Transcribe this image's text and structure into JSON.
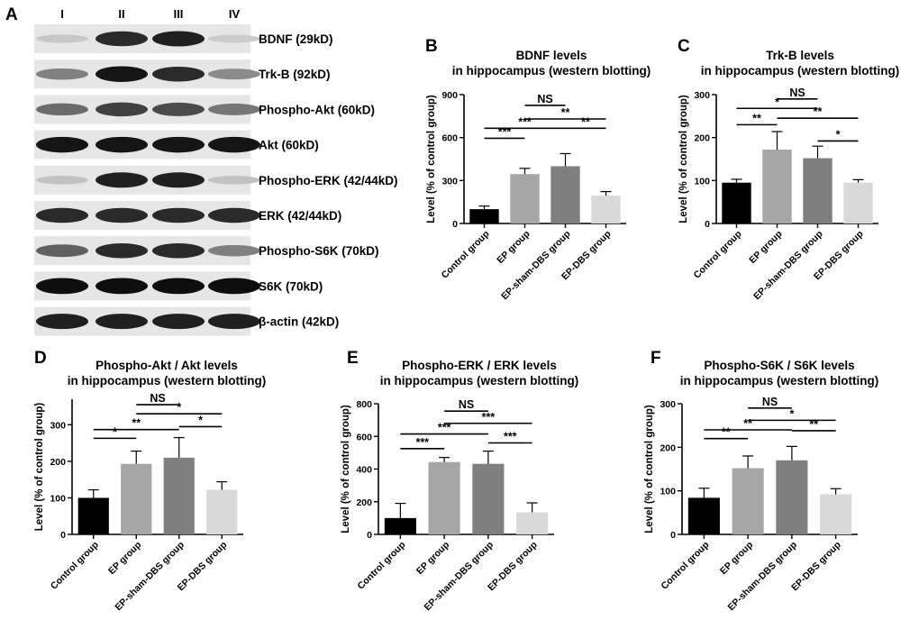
{
  "panel_a": {
    "letter": "A",
    "lanes": [
      "I",
      "II",
      "III",
      "IV"
    ],
    "bands": [
      {
        "label": "BDNF (29kD)",
        "intensity": [
          0.12,
          0.85,
          0.9,
          0.1
        ]
      },
      {
        "label": "Trk-B (92kD)",
        "intensity": [
          0.45,
          0.95,
          0.85,
          0.4
        ]
      },
      {
        "label": "Phospho-Akt (60kD)",
        "intensity": [
          0.55,
          0.75,
          0.7,
          0.5
        ]
      },
      {
        "label": "Akt (60kD)",
        "intensity": [
          0.95,
          0.95,
          0.95,
          0.95
        ]
      },
      {
        "label": "Phospho-ERK (42/44kD)",
        "intensity": [
          0.15,
          0.9,
          0.9,
          0.15
        ]
      },
      {
        "label": "ERK (42/44kD)",
        "intensity": [
          0.85,
          0.85,
          0.85,
          0.85
        ]
      },
      {
        "label": "Phospho-S6K (70kD)",
        "intensity": [
          0.6,
          0.85,
          0.85,
          0.45
        ]
      },
      {
        "label": "S6K (70kD)",
        "intensity": [
          0.98,
          0.98,
          0.98,
          0.98
        ]
      },
      {
        "label": "β-actin (42kD)",
        "intensity": [
          0.9,
          0.9,
          0.9,
          0.9
        ]
      }
    ]
  },
  "bar_colors": [
    "#000000",
    "#a6a6a6",
    "#7f7f7f",
    "#d9d9d9"
  ],
  "chart_data": [
    {
      "letter": "B",
      "type": "bar",
      "title": [
        "BDNF levels",
        "in hippocampus (western blotting)"
      ],
      "ylabel": "Level (% of control group)",
      "ylim": [
        0,
        900
      ],
      "yticks": [
        0,
        300,
        600,
        900
      ],
      "categories": [
        "Control group",
        "EP group",
        "EP-sham-DBS group",
        "EP-DBS group"
      ],
      "values": [
        100,
        345,
        400,
        195
      ],
      "errors": [
        22,
        40,
        88,
        28
      ],
      "significance": [
        {
          "from": 0,
          "to": 1,
          "y": 595,
          "text": "***"
        },
        {
          "from": 0,
          "to": 2,
          "y": 665,
          "text": "***"
        },
        {
          "from": 1,
          "to": 3,
          "y": 730,
          "text": "**"
        },
        {
          "from": 2,
          "to": 3,
          "y": 665,
          "text": "**"
        },
        {
          "from": 1,
          "to": 2,
          "y": 825,
          "text": "NS"
        }
      ]
    },
    {
      "letter": "C",
      "type": "bar",
      "title": [
        "Trk-B levels",
        "in hippocampus (western blotting)"
      ],
      "ylabel": "Level (% of control group)",
      "ylim": [
        0,
        300
      ],
      "yticks": [
        0,
        100,
        200,
        300
      ],
      "categories": [
        "Control group",
        "EP group",
        "EP-sham-DBS group",
        "EP-DBS group"
      ],
      "values": [
        95,
        172,
        152,
        95
      ],
      "errors": [
        8,
        42,
        28,
        7
      ],
      "significance": [
        {
          "from": 0,
          "to": 1,
          "y": 230,
          "text": "**"
        },
        {
          "from": 2,
          "to": 3,
          "y": 192,
          "text": "*"
        },
        {
          "from": 0,
          "to": 2,
          "y": 268,
          "text": "*"
        },
        {
          "from": 1,
          "to": 3,
          "y": 245,
          "text": "**"
        },
        {
          "from": 1,
          "to": 2,
          "y": 290,
          "text": "NS"
        }
      ]
    },
    {
      "letter": "D",
      "type": "bar",
      "title": [
        "Phospho-Akt /  Akt levels",
        "in hippocampus (western blotting)"
      ],
      "ylabel": "Level (% of control group)",
      "ylim": [
        0,
        370
      ],
      "yticks": [
        0,
        100,
        200,
        300
      ],
      "categories": [
        "Control group",
        "EP group",
        "EP-sham-DBS group",
        "EP-DBS group"
      ],
      "values": [
        100,
        193,
        210,
        122
      ],
      "errors": [
        22,
        35,
        55,
        22
      ],
      "significance": [
        {
          "from": 0,
          "to": 1,
          "y": 263,
          "text": "*"
        },
        {
          "from": 2,
          "to": 3,
          "y": 295,
          "text": "*"
        },
        {
          "from": 0,
          "to": 2,
          "y": 287,
          "text": "**"
        },
        {
          "from": 1,
          "to": 3,
          "y": 330,
          "text": "*"
        },
        {
          "from": 1,
          "to": 2,
          "y": 355,
          "text": "NS"
        }
      ]
    },
    {
      "letter": "E",
      "type": "bar",
      "title": [
        "Phospho-ERK /  ERK levels",
        "in hippocampus (western blotting)"
      ],
      "ylabel": "Level (% of control group)",
      "ylim": [
        0,
        800
      ],
      "yticks": [
        0,
        200,
        400,
        600,
        800
      ],
      "categories": [
        "Control group",
        "EP group",
        "EP-sham-DBS group",
        "EP-DBS group"
      ],
      "values": [
        100,
        443,
        432,
        135
      ],
      "errors": [
        90,
        28,
        78,
        58
      ],
      "significance": [
        {
          "from": 0,
          "to": 1,
          "y": 525,
          "text": "***"
        },
        {
          "from": 2,
          "to": 3,
          "y": 560,
          "text": "***"
        },
        {
          "from": 0,
          "to": 2,
          "y": 615,
          "text": "***"
        },
        {
          "from": 1,
          "to": 3,
          "y": 680,
          "text": "***"
        },
        {
          "from": 1,
          "to": 2,
          "y": 755,
          "text": "NS"
        }
      ]
    },
    {
      "letter": "F",
      "type": "bar",
      "title": [
        "Phospho-S6K / S6K levels",
        "in hippocampus (western blotting)"
      ],
      "ylabel": "Level (% of control group)",
      "ylim": [
        0,
        300
      ],
      "yticks": [
        0,
        100,
        200,
        300
      ],
      "categories": [
        "Control group",
        "EP group",
        "EP-sham-DBS group",
        "EP-DBS group"
      ],
      "values": [
        84,
        152,
        170,
        92
      ],
      "errors": [
        22,
        28,
        32,
        13
      ],
      "significance": [
        {
          "from": 0,
          "to": 1,
          "y": 220,
          "text": "**"
        },
        {
          "from": 2,
          "to": 3,
          "y": 238,
          "text": "**"
        },
        {
          "from": 0,
          "to": 2,
          "y": 240,
          "text": "**"
        },
        {
          "from": 1,
          "to": 3,
          "y": 262,
          "text": "*"
        },
        {
          "from": 1,
          "to": 2,
          "y": 290,
          "text": "NS"
        }
      ]
    }
  ]
}
